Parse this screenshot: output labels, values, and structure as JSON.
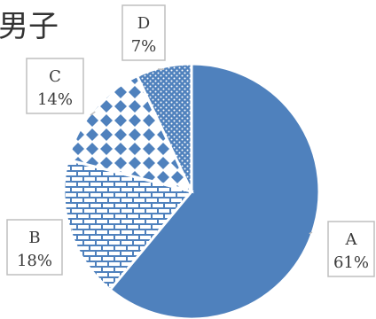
{
  "title_fragment": "男子",
  "chart_data": {
    "type": "pie",
    "title": "男子",
    "slices": [
      {
        "label": "A",
        "value": 61,
        "display": "61%",
        "color": "#4f81bd",
        "fill": "solid"
      },
      {
        "label": "B",
        "value": 18,
        "display": "18%",
        "color": "#4f81bd",
        "fill": "brick"
      },
      {
        "label": "C",
        "value": 14,
        "display": "14%",
        "color": "#4f81bd",
        "fill": "diamond"
      },
      {
        "label": "D",
        "value": 7,
        "display": "7%",
        "color": "#4f81bd",
        "fill": "dots"
      }
    ],
    "start": "top",
    "direction": "clockwise",
    "data_labels": "callout-boxes"
  }
}
